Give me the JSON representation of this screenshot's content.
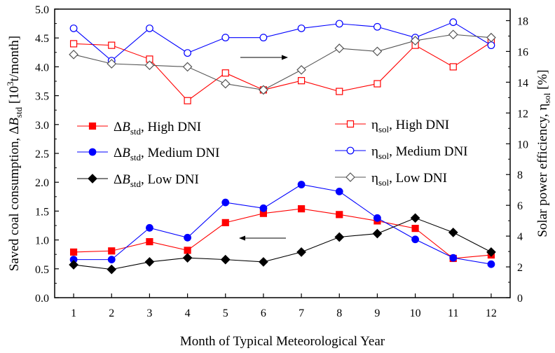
{
  "chart_data": {
    "type": "line",
    "xlabel": "Month of Typical Meteorological Year",
    "ylabel_left": {
      "main": "Saved coal consumption, ΔB",
      "sub": "std",
      "unit_pre": " [10",
      "sup": "3",
      "unit_post": "t/month]"
    },
    "ylabel_right": {
      "main": "Solar power efficiency, η",
      "sub": "sol",
      "unit": " [%]"
    },
    "x": [
      1,
      2,
      3,
      4,
      5,
      6,
      7,
      8,
      9,
      10,
      11,
      12
    ],
    "x_ticks": [
      "1",
      "2",
      "3",
      "4",
      "5",
      "6",
      "7",
      "8",
      "9",
      "10",
      "11",
      "12"
    ],
    "xlim": [
      0.5,
      12.5
    ],
    "ylim_left": [
      0,
      5.0
    ],
    "yticks_left": [
      "0.0",
      "0.5",
      "1.0",
      "1.5",
      "2.0",
      "2.5",
      "3.0",
      "3.5",
      "4.0",
      "4.5",
      "5.0"
    ],
    "ylim_right": [
      0,
      18.75
    ],
    "yticks_right": [
      "0",
      "2",
      "4",
      "6",
      "8",
      "10",
      "12",
      "14",
      "16",
      "18"
    ],
    "grid": false,
    "series": [
      {
        "name": {
          "pre": "ΔB",
          "sub": "std",
          "post": ", High DNI"
        },
        "axis": "left",
        "color": "#ff0000",
        "marker": "square-filled",
        "values": [
          0.79,
          0.81,
          0.97,
          0.82,
          1.3,
          1.46,
          1.54,
          1.44,
          1.33,
          1.2,
          0.68,
          0.74
        ]
      },
      {
        "name": {
          "pre": "ΔB",
          "sub": "std",
          "post": ", Medium DNI"
        },
        "axis": "left",
        "color": "#0000ff",
        "marker": "circle-filled",
        "values": [
          0.66,
          0.66,
          1.21,
          1.04,
          1.65,
          1.55,
          1.96,
          1.84,
          1.38,
          1.01,
          0.69,
          0.58
        ]
      },
      {
        "name": {
          "pre": "ΔB",
          "sub": "std",
          "post": ", Low DNI"
        },
        "axis": "left",
        "color": "#000000",
        "marker": "diamond-filled",
        "values": [
          0.57,
          0.49,
          0.62,
          0.69,
          0.66,
          0.62,
          0.79,
          1.05,
          1.11,
          1.38,
          1.13,
          0.79
        ]
      },
      {
        "name": {
          "pre": "η",
          "sub": "sol",
          "post": ", High DNI"
        },
        "axis": "right",
        "color": "#ff0000",
        "marker": "square-open",
        "values": [
          16.5,
          16.4,
          15.5,
          12.8,
          14.6,
          13.5,
          14.1,
          13.4,
          13.9,
          16.4,
          15.0,
          16.6
        ]
      },
      {
        "name": {
          "pre": "η",
          "sub": "sol",
          "post": ", Medium DNI"
        },
        "axis": "right",
        "color": "#0000ff",
        "marker": "circle-open",
        "values": [
          17.5,
          15.4,
          17.5,
          15.9,
          16.9,
          16.9,
          17.5,
          17.8,
          17.6,
          16.9,
          17.9,
          16.4
        ]
      },
      {
        "name": {
          "pre": "η",
          "sub": "sol",
          "post": ", Low DNI"
        },
        "axis": "right",
        "color": "#555555",
        "marker": "diamond-open",
        "values": [
          15.8,
          15.2,
          15.1,
          15.0,
          13.9,
          13.5,
          14.8,
          16.2,
          16.0,
          16.7,
          17.1,
          16.9
        ]
      }
    ],
    "annotations": [
      {
        "type": "arrow",
        "direction": "right",
        "meaning": "solar efficiency curves read on right axis"
      },
      {
        "type": "arrow",
        "direction": "left",
        "meaning": "saved coal curves read on left axis"
      }
    ]
  }
}
